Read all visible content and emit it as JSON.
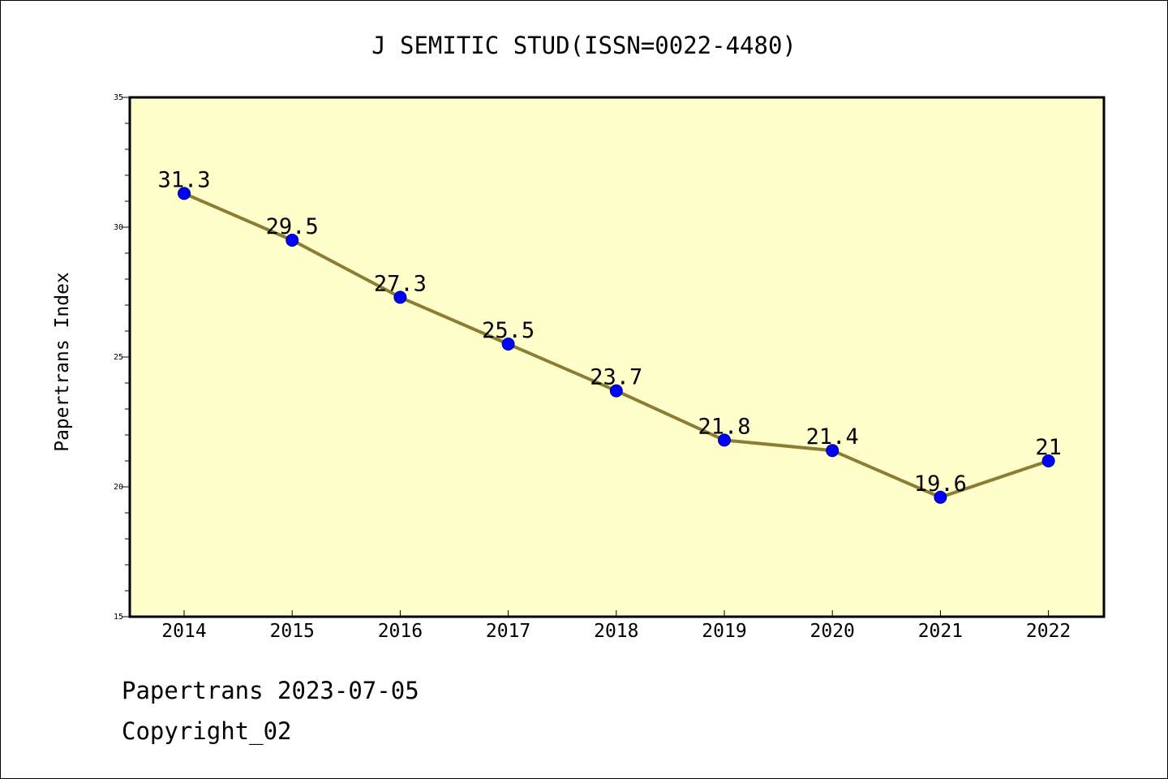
{
  "colors": {
    "plot_background": "#ffffcc",
    "line": "#8b7d34",
    "marker": "#0000ff",
    "marker_edge": "#000080",
    "axis": "#000000"
  },
  "footer": {
    "date_line": "Papertrans 2023-07-05",
    "copyright_line": "Copyright_02"
  },
  "chart_data": {
    "type": "line",
    "title": "J SEMITIC STUD(ISSN=0022-4480)",
    "xlabel": "",
    "ylabel": "Papertrans Index",
    "categories": [
      "2014",
      "2015",
      "2016",
      "2017",
      "2018",
      "2019",
      "2020",
      "2021",
      "2022"
    ],
    "series": [
      {
        "values": [
          31.3,
          29.5,
          27.3,
          25.5,
          23.7,
          21.8,
          21.4,
          19.6,
          21
        ],
        "data_labels": [
          "31.3",
          "29.5",
          "27.3",
          "25.5",
          "23.7",
          "21.8",
          "21.4",
          "19.6",
          "21"
        ]
      }
    ],
    "ylim": [
      15,
      35
    ],
    "yticks": [
      15,
      20,
      25,
      30,
      35
    ],
    "yticks_labels": [
      "15",
      "20",
      "25",
      "30",
      "35"
    ],
    "grid": false,
    "legend": "none"
  }
}
